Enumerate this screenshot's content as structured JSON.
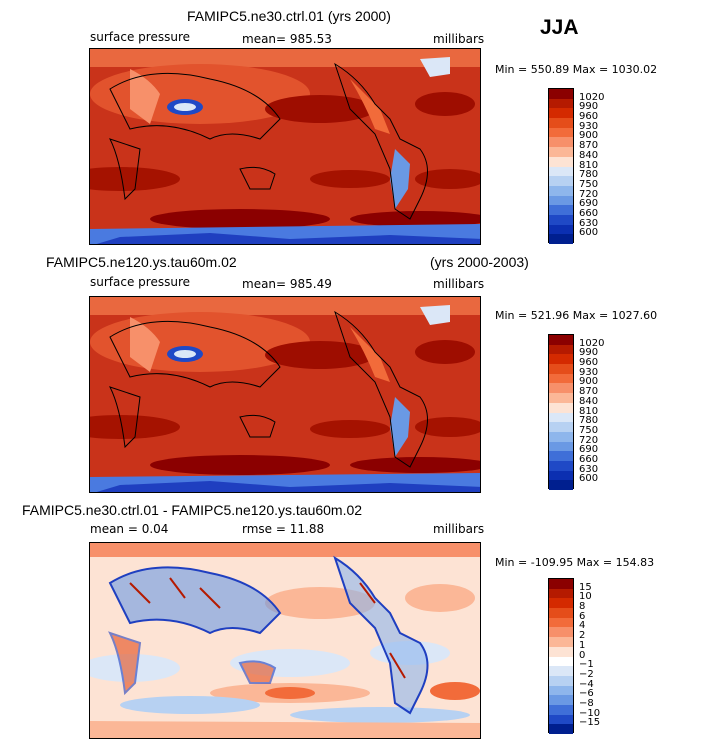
{
  "season": "JJA",
  "panels": [
    {
      "title": "FAMIPC5.ne30.ctrl.01 (yrs 2000)",
      "left_label": "surface pressure",
      "center_label": "mean= 985.53",
      "right_label": "millibars",
      "minmax": "Min = 550.89 Max = 1030.02",
      "legend_levels": [
        "1020",
        "990",
        "960",
        "930",
        "900",
        "870",
        "840",
        "810",
        "780",
        "750",
        "720",
        "690",
        "660",
        "630",
        "600"
      ],
      "legend_colors": [
        "#8b0000",
        "#b51a00",
        "#d42a00",
        "#e54d1a",
        "#f26b3a",
        "#f7906a",
        "#fbb797",
        "#fde3d4",
        "#dbe7f7",
        "#b7d1f2",
        "#8eb6ec",
        "#6a99e4",
        "#3f6fd8",
        "#1f49c6",
        "#0b2fb1",
        "#001f8f"
      ]
    },
    {
      "title_left": "FAMIPC5.ne120.ys.tau60m.02",
      "title_right": "(yrs 2000-2003)",
      "left_label": "surface pressure",
      "center_label": "mean= 985.49",
      "right_label": "millibars",
      "minmax": "Min = 521.96 Max = 1027.60",
      "legend_levels": [
        "1020",
        "990",
        "960",
        "930",
        "900",
        "870",
        "840",
        "810",
        "780",
        "750",
        "720",
        "690",
        "660",
        "630",
        "600"
      ],
      "legend_colors": [
        "#8b0000",
        "#b51a00",
        "#d42a00",
        "#e54d1a",
        "#f26b3a",
        "#f7906a",
        "#fbb797",
        "#fde3d4",
        "#dbe7f7",
        "#b7d1f2",
        "#8eb6ec",
        "#6a99e4",
        "#3f6fd8",
        "#1f49c6",
        "#0b2fb1",
        "#001f8f"
      ]
    },
    {
      "title": "FAMIPC5.ne30.ctrl.01 - FAMIPC5.ne120.ys.tau60m.02",
      "left_label": "mean =    0.04",
      "center_label": "rmse =   11.88",
      "right_label": "millibars",
      "minmax": "Min = -109.95 Max = 154.83",
      "legend_levels": [
        "15",
        "10",
        "8",
        "6",
        "4",
        "2",
        "1",
        "0",
        "−1",
        "−2",
        "−4",
        "−6",
        "−8",
        "−10",
        "−15"
      ],
      "legend_colors": [
        "#8b0000",
        "#b51a00",
        "#d42a00",
        "#e54d1a",
        "#f26b3a",
        "#f7906a",
        "#fbb797",
        "#fde3d4",
        "#ffffff",
        "#dbe7f7",
        "#b7d1f2",
        "#8eb6ec",
        "#6a99e4",
        "#3f6fd8",
        "#1f49c6",
        "#001f8f"
      ]
    }
  ]
}
